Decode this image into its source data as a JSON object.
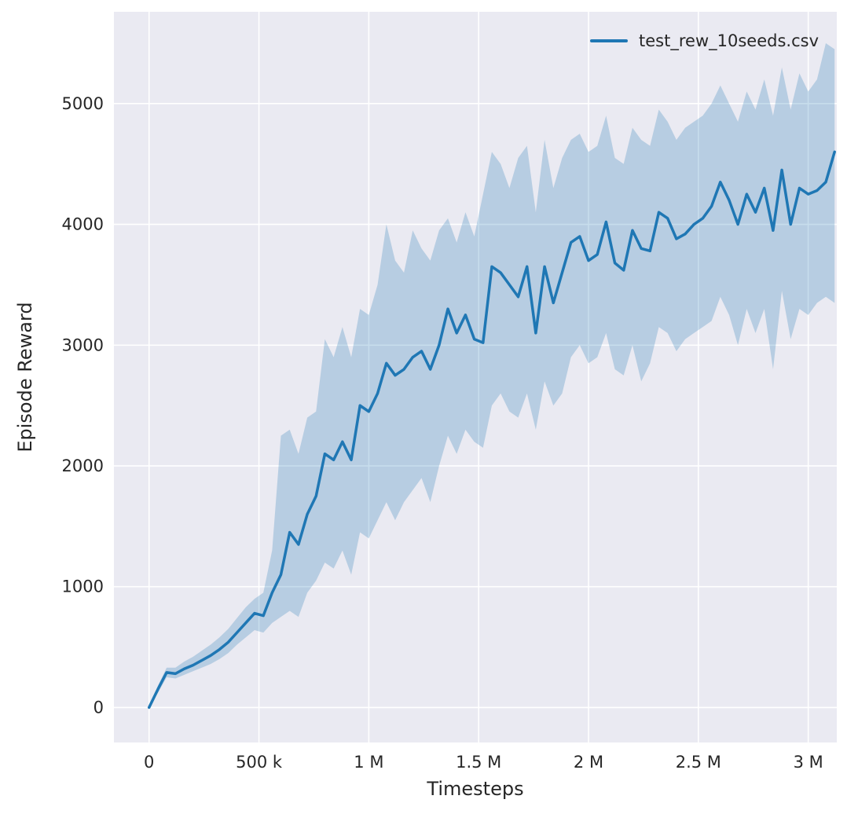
{
  "chart_data": {
    "type": "line",
    "title": "",
    "xlabel": "Timesteps",
    "ylabel": "Episode Reward",
    "grid": true,
    "legend_position": "upper right",
    "xlim": [
      -160000,
      3130000
    ],
    "ylim": [
      -290,
      5760
    ],
    "x_ticks": {
      "values": [
        0,
        500000,
        1000000,
        1500000,
        2000000,
        2500000,
        3000000
      ],
      "labels": [
        "0",
        "500 k",
        "1 M",
        "1.5 M",
        "2 M",
        "2.5 M",
        "3 M"
      ]
    },
    "y_ticks": {
      "values": [
        0,
        1000,
        2000,
        3000,
        4000,
        5000
      ],
      "labels": [
        "0",
        "1000",
        "2000",
        "3000",
        "4000",
        "5000"
      ]
    },
    "colors": {
      "plot_bg": "#eaeaf2",
      "grid": "#ffffff",
      "text": "#262626",
      "line": "#1f77b4",
      "band": "rgba(31,119,180,0.25)"
    },
    "series": [
      {
        "name": "test_rew_10seeds.csv",
        "x": [
          0,
          40000,
          80000,
          120000,
          160000,
          200000,
          240000,
          280000,
          320000,
          360000,
          400000,
          440000,
          480000,
          520000,
          560000,
          600000,
          640000,
          680000,
          720000,
          760000,
          800000,
          840000,
          880000,
          920000,
          960000,
          1000000,
          1040000,
          1080000,
          1120000,
          1160000,
          1200000,
          1240000,
          1280000,
          1320000,
          1360000,
          1400000,
          1440000,
          1480000,
          1520000,
          1560000,
          1600000,
          1640000,
          1680000,
          1720000,
          1760000,
          1800000,
          1840000,
          1880000,
          1920000,
          1960000,
          2000000,
          2040000,
          2080000,
          2120000,
          2160000,
          2200000,
          2240000,
          2280000,
          2320000,
          2360000,
          2400000,
          2440000,
          2480000,
          2520000,
          2560000,
          2600000,
          2640000,
          2680000,
          2720000,
          2760000,
          2800000,
          2840000,
          2880000,
          2920000,
          2960000,
          3000000,
          3040000,
          3080000,
          3120000
        ],
        "mean": [
          0,
          150,
          290,
          280,
          320,
          350,
          390,
          430,
          480,
          540,
          620,
          700,
          780,
          760,
          950,
          1100,
          1450,
          1350,
          1600,
          1750,
          2100,
          2050,
          2200,
          2050,
          2500,
          2450,
          2600,
          2850,
          2750,
          2800,
          2900,
          2950,
          2800,
          3000,
          3300,
          3100,
          3250,
          3050,
          3020,
          3650,
          3600,
          3500,
          3400,
          3650,
          3100,
          3650,
          3350,
          3600,
          3850,
          3900,
          3700,
          3750,
          4020,
          3680,
          3620,
          3950,
          3800,
          3780,
          4100,
          4050,
          3880,
          3920,
          4000,
          4050,
          4150,
          4350,
          4200,
          4000,
          4250,
          4100,
          4300,
          3950,
          4450,
          4000,
          4300,
          4250,
          4280,
          4350,
          4600
        ],
        "lower": [
          0,
          120,
          250,
          240,
          270,
          300,
          330,
          360,
          400,
          450,
          520,
          580,
          640,
          620,
          700,
          750,
          800,
          750,
          950,
          1050,
          1200,
          1150,
          1300,
          1100,
          1450,
          1400,
          1550,
          1700,
          1550,
          1700,
          1800,
          1900,
          1700,
          2000,
          2250,
          2100,
          2300,
          2200,
          2150,
          2500,
          2600,
          2450,
          2400,
          2600,
          2300,
          2700,
          2500,
          2600,
          2900,
          3000,
          2850,
          2900,
          3100,
          2800,
          2750,
          3000,
          2700,
          2850,
          3150,
          3100,
          2950,
          3050,
          3100,
          3150,
          3200,
          3400,
          3250,
          3000,
          3300,
          3100,
          3300,
          2800,
          3450,
          3050,
          3300,
          3250,
          3350,
          3400,
          3350
        ],
        "upper": [
          0,
          180,
          330,
          330,
          380,
          420,
          470,
          520,
          580,
          650,
          740,
          830,
          900,
          950,
          1300,
          2250,
          2300,
          2100,
          2400,
          2450,
          3050,
          2900,
          3150,
          2900,
          3300,
          3250,
          3500,
          4000,
          3700,
          3600,
          3950,
          3800,
          3700,
          3950,
          4050,
          3850,
          4100,
          3900,
          4250,
          4600,
          4500,
          4300,
          4550,
          4650,
          4100,
          4700,
          4300,
          4550,
          4700,
          4750,
          4600,
          4650,
          4900,
          4550,
          4500,
          4800,
          4700,
          4650,
          4950,
          4850,
          4700,
          4800,
          4850,
          4900,
          5000,
          5150,
          5000,
          4850,
          5100,
          4950,
          5200,
          4900,
          5300,
          4950,
          5250,
          5100,
          5200,
          5500,
          5450
        ]
      }
    ]
  }
}
